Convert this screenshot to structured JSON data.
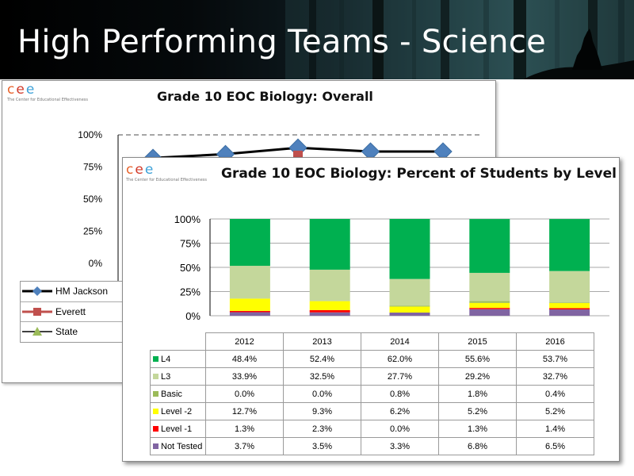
{
  "slide": {
    "title": "High Performing Teams - Science"
  },
  "logo": {
    "letters": [
      "c",
      "e",
      "e"
    ],
    "letter_colors": [
      "#e8632b",
      "#d23a2a",
      "#3da1d8"
    ],
    "subtitle": "The Center for Educational Effectiveness"
  },
  "chart_data": [
    {
      "type": "line",
      "title": "Grade 10 EOC Biology: Overall",
      "yticks": [
        "100%",
        "75%",
        "50%",
        "25%",
        "0%"
      ],
      "ylim": [
        0,
        100
      ],
      "grid": true,
      "legend_position": "bottom-left",
      "series": [
        {
          "name": "HM Jackson",
          "color": "#000000",
          "marker": "diamond",
          "marker_color": "#4f81bd",
          "values": [
            82,
            85,
            90,
            87,
            87
          ]
        },
        {
          "name": "Everett",
          "color": "#c0504d",
          "marker": "square",
          "marker_color": "#c0504d",
          "values": [
            null,
            null,
            84,
            null,
            null
          ]
        },
        {
          "name": "State",
          "color": "#000000",
          "marker": "triangle",
          "marker_color": "#9bbb59",
          "values": []
        }
      ]
    },
    {
      "type": "bar",
      "stacked": true,
      "title": "Grade 10 EOC Biology: Percent of Students by Level",
      "categories": [
        "2012",
        "2013",
        "2014",
        "2015",
        "2016"
      ],
      "yticks": [
        "100%",
        "75%",
        "50%",
        "25%",
        "0%"
      ],
      "ylim": [
        0,
        100
      ],
      "grid": true,
      "legend_position": "data-table",
      "stack_order": [
        "Not Tested",
        "Level -1",
        "Level -2",
        "Basic",
        "L3",
        "L4"
      ],
      "series": [
        {
          "name": "L4",
          "color": "#00b050",
          "values": [
            48.4,
            52.4,
            62.0,
            55.6,
            53.7
          ],
          "labels": [
            "48.4%",
            "52.4%",
            "62.0%",
            "55.6%",
            "53.7%"
          ]
        },
        {
          "name": "L3",
          "color": "#c4d79b",
          "values": [
            33.9,
            32.5,
            27.7,
            29.2,
            32.7
          ],
          "labels": [
            "33.9%",
            "32.5%",
            "27.7%",
            "29.2%",
            "32.7%"
          ]
        },
        {
          "name": "Basic",
          "color": "#9bbb59",
          "values": [
            0.0,
            0.0,
            0.8,
            1.8,
            0.4
          ],
          "labels": [
            "0.0%",
            "0.0%",
            "0.8%",
            "1.8%",
            "0.4%"
          ]
        },
        {
          "name": "Level -2",
          "color": "#ffff00",
          "values": [
            12.7,
            9.3,
            6.2,
            5.2,
            5.2
          ],
          "labels": [
            "12.7%",
            "9.3%",
            "6.2%",
            "5.2%",
            "5.2%"
          ]
        },
        {
          "name": "Level -1",
          "color": "#ff0000",
          "values": [
            1.3,
            2.3,
            0.0,
            1.3,
            1.4
          ],
          "labels": [
            "1.3%",
            "2.3%",
            "0.0%",
            "1.3%",
            "1.4%"
          ]
        },
        {
          "name": "Not Tested",
          "color": "#8064a2",
          "values": [
            3.7,
            3.5,
            3.3,
            6.8,
            6.5
          ],
          "labels": [
            "3.7%",
            "3.5%",
            "3.3%",
            "6.8%",
            "6.5%"
          ]
        }
      ]
    }
  ]
}
